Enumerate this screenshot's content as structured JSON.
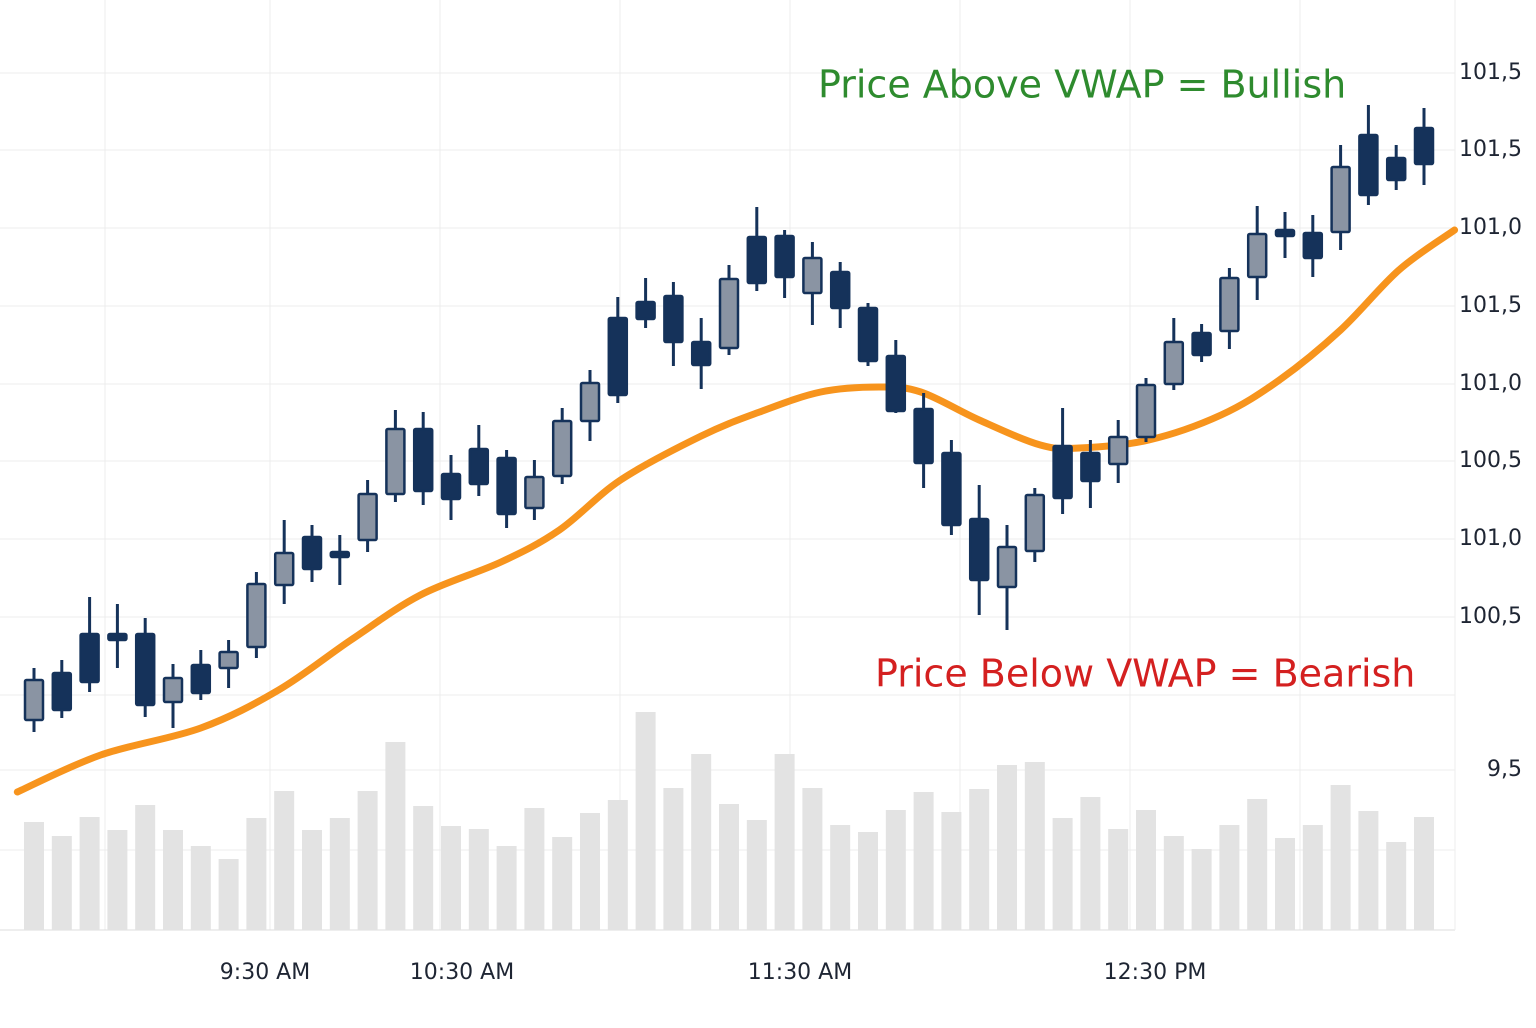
{
  "chart_data": {
    "type": "candlestick",
    "annotations": [
      {
        "text": "Price Above VWAP = Bullish",
        "color": "#2e8b2e"
      },
      {
        "text": "Price Below VWAP = Bearish",
        "color": "#d42020"
      }
    ],
    "y_axis_labels": [
      "101,5",
      "101,5",
      "101,0",
      "101,5",
      "101,0",
      "100,5",
      "101,0",
      "100,5",
      "9,5"
    ],
    "x_axis_labels": [
      "9:30 AM",
      "10:30 AM",
      "11:30 AM",
      "12:30 PM"
    ],
    "ylim": [
      -60,
      660
    ],
    "grid": true,
    "up_color": "#8a94a3",
    "down_color": "#15325a",
    "open": [
      20,
      67,
      106,
      106,
      106,
      38,
      75,
      72,
      93,
      155,
      203,
      188,
      200,
      246,
      311,
      266,
      291,
      282,
      232,
      264,
      319,
      422,
      438,
      444,
      398,
      392,
      503,
      504,
      447,
      468,
      432,
      384,
      331,
      287,
      221,
      153,
      189,
      294,
      287,
      276,
      303,
      356,
      407,
      409,
      463,
      510,
      507,
      508,
      605,
      582,
      612
    ],
    "high": [
      72,
      80,
      143,
      136,
      122,
      76,
      90,
      100,
      168,
      220,
      215,
      205,
      260,
      330,
      328,
      285,
      315,
      290,
      280,
      332,
      370,
      443,
      462,
      458,
      422,
      475,
      533,
      510,
      498,
      478,
      437,
      400,
      347,
      300,
      255,
      215,
      252,
      332,
      300,
      320,
      362,
      422,
      416,
      472,
      534,
      528,
      525,
      595,
      635,
      595,
      632
    ],
    "low": [
      8,
      22,
      48,
      72,
      23,
      12,
      40,
      52,
      82,
      136,
      158,
      155,
      188,
      238,
      235,
      220,
      244,
      212,
      220,
      256,
      299,
      337,
      412,
      374,
      351,
      385,
      449,
      442,
      415,
      412,
      374,
      327,
      252,
      205,
      125,
      110,
      178,
      226,
      232,
      257,
      298,
      350,
      378,
      391,
      440,
      482,
      463,
      490,
      535,
      550,
      555
    ],
    "close": [
      60,
      30,
      58,
      100,
      35,
      62,
      47,
      88,
      156,
      187,
      171,
      183,
      246,
      311,
      249,
      241,
      256,
      226,
      263,
      319,
      357,
      345,
      421,
      398,
      375,
      461,
      457,
      463,
      482,
      432,
      379,
      329,
      277,
      215,
      160,
      193,
      245,
      242,
      259,
      303,
      355,
      398,
      385,
      462,
      506,
      504,
      482,
      573,
      545,
      560,
      576
    ],
    "vwap": {
      "color": "#f7941d",
      "x": [
        -0.6,
        2.4,
        6,
        8.8,
        11.4,
        13.9,
        16.8,
        18.9,
        21.1,
        24,
        26.1,
        28.3,
        30.4,
        31.9,
        34,
        36.2,
        37.6,
        40.1,
        42.7,
        44.8,
        47,
        49.1,
        51.1
      ],
      "values": [
        -52,
        -15,
        12,
        50,
        100,
        145,
        178,
        210,
        260,
        304,
        328,
        348,
        353,
        348,
        320,
        295,
        292,
        300,
        325,
        360,
        410,
        470,
        510
      ]
    },
    "volume": {
      "color": "#e3e3e3",
      "ylim": [
        0,
        220
      ],
      "values": [
        108,
        94,
        113,
        100,
        125,
        100,
        84,
        71,
        112,
        139,
        100,
        112,
        139,
        188,
        124,
        104,
        101,
        84,
        122,
        93,
        117,
        130,
        218,
        142,
        176,
        126,
        110,
        176,
        142,
        105,
        98,
        120,
        138,
        118,
        141,
        165,
        168,
        112,
        133,
        101,
        120,
        94,
        81,
        105,
        131,
        92,
        105,
        145,
        119,
        88,
        113
      ]
    }
  }
}
